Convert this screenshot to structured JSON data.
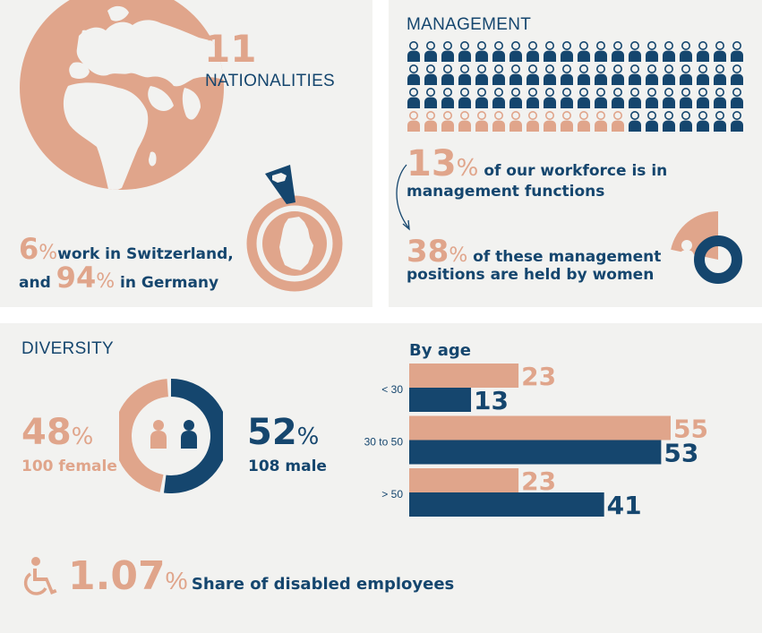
{
  "colors": {
    "navy": "#15466e",
    "peach": "#e0a58b",
    "panel": "#f2f2f0"
  },
  "nationalities": {
    "count": "11",
    "label": "NATIONALITIES",
    "switzerland_pct": "6",
    "switzerland_text": "work in Switzerland,",
    "and_text": "and",
    "germany_pct": "94",
    "germany_text": "in Germany",
    "pct_sign": "%"
  },
  "management": {
    "title": "MANAGEMENT",
    "grid_rows": 4,
    "grid_cols": 20,
    "women_icons": 13,
    "workforce_pct": "13",
    "workforce_text_1": "of our workforce is in",
    "workforce_text_2": "management functions",
    "women_pct": "38",
    "women_text_1": "of these management",
    "women_text_2": "positions are held by women",
    "women_share": 0.38
  },
  "diversity": {
    "title": "DIVERSITY",
    "female_pct": "48",
    "female_label": "100 female",
    "male_pct": "52",
    "male_label": "108 male",
    "female_share": 0.48,
    "disabled_pct": "1.07",
    "disabled_label": "Share of disabled employees",
    "pct_sign": "%"
  },
  "chart_data": {
    "type": "bar",
    "orientation": "horizontal",
    "title": "By age",
    "categories": [
      "< 30",
      "30 to 50",
      "> 50"
    ],
    "series": [
      {
        "values": [
          23,
          55,
          23
        ],
        "color": "#e0a58b"
      },
      {
        "values": [
          13,
          53,
          41
        ],
        "color": "#15466e"
      }
    ],
    "xlim": [
      0,
      55
    ],
    "grid": false
  }
}
